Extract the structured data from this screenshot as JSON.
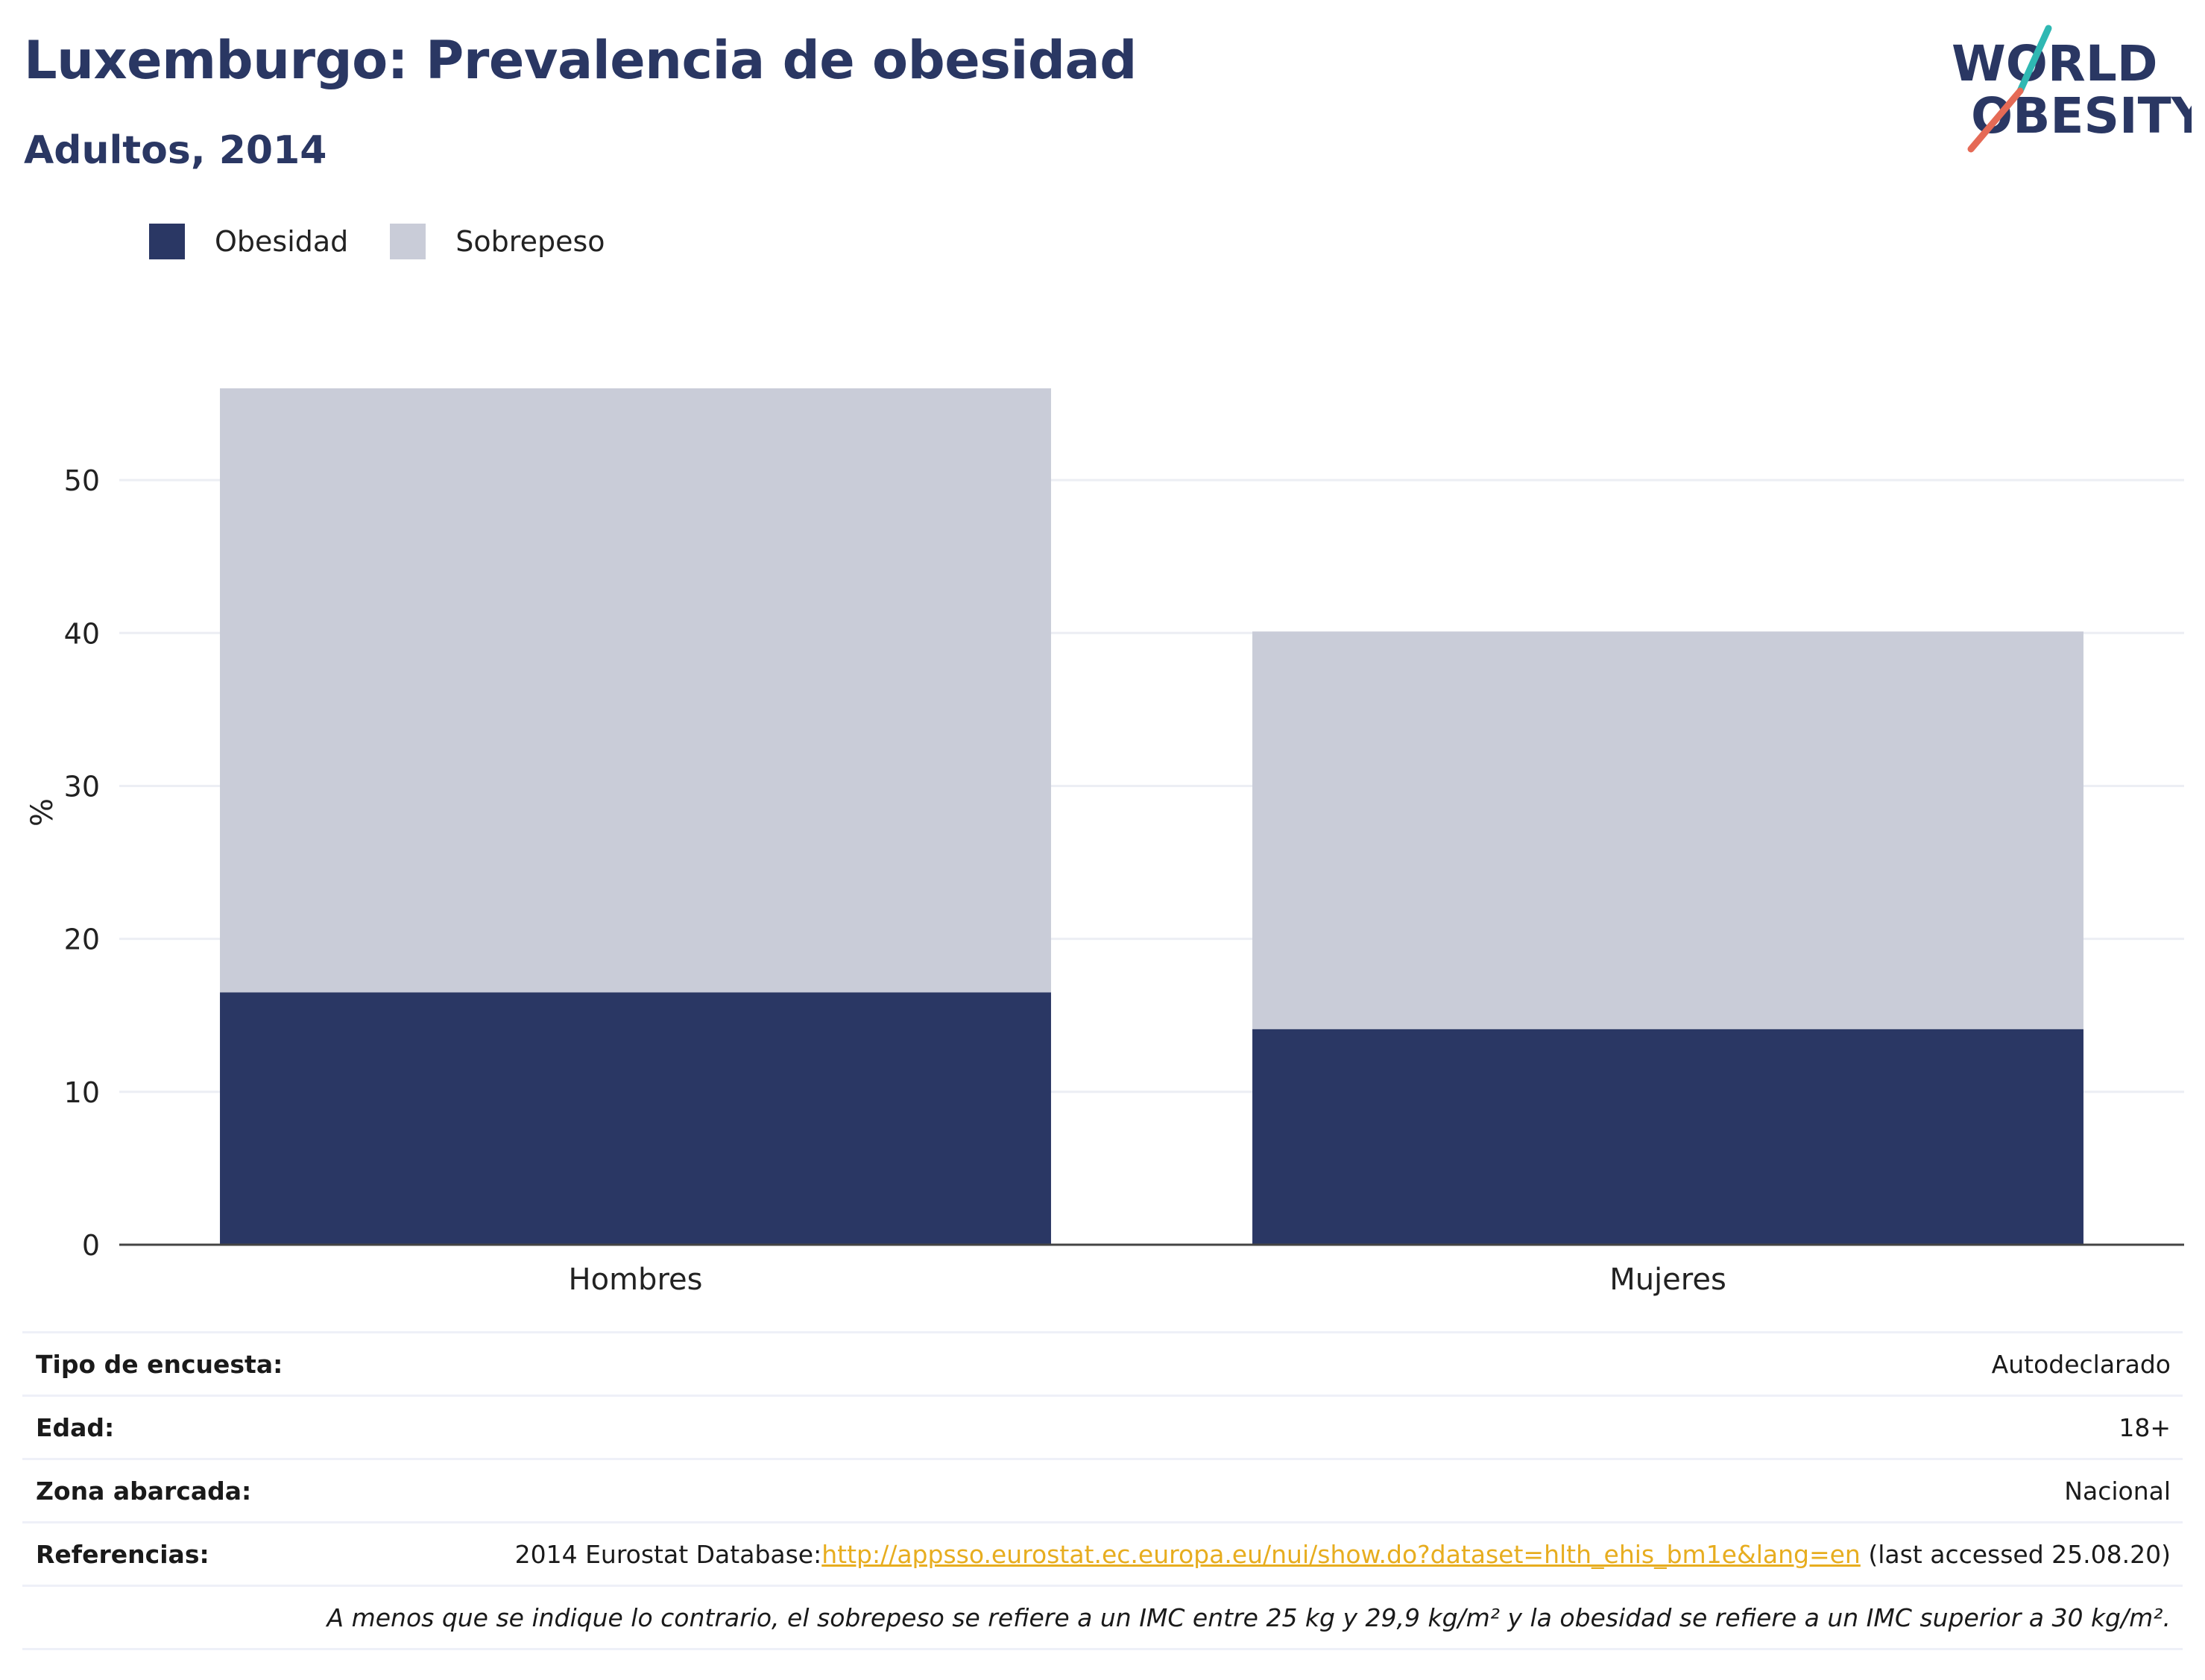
{
  "header": {
    "title": "Luxemburgo: Prevalencia de obesidad",
    "subtitle": "Adultos, 2014",
    "logo_line1": "WORLD",
    "logo_line2": "OBESITY"
  },
  "legend": {
    "items": [
      {
        "label": "Obesidad",
        "color": "#2a3764"
      },
      {
        "label": "Sobrepeso",
        "color": "#c9ccd8"
      }
    ]
  },
  "chart_data": {
    "type": "bar",
    "stacked": true,
    "categories": [
      "Hombres",
      "Mujeres"
    ],
    "series": [
      {
        "name": "Obesidad",
        "values": [
          16.5,
          14.1
        ],
        "color": "#2a3764"
      },
      {
        "name": "Sobrepeso",
        "values": [
          39.5,
          26.0
        ],
        "color": "#c9ccd8"
      }
    ],
    "title": "Luxemburgo: Prevalencia de obesidad",
    "subtitle": "Adultos, 2014",
    "xlabel": "",
    "ylabel": "%",
    "ylim": [
      0,
      58
    ],
    "yticks": [
      0,
      10,
      20,
      30,
      40,
      50
    ],
    "grid": true,
    "legend_position": "top-left"
  },
  "info": {
    "survey_type_label": "Tipo de encuesta:",
    "survey_type_value": "Autodeclarado",
    "age_label": "Edad:",
    "age_value": "18+",
    "area_label": "Zona abarcada:",
    "area_value": "Nacional",
    "references_label": "Referencias:",
    "references_prefix": "2014 Eurostat Database:",
    "references_link": "http://appsso.eurostat.ec.europa.eu/nui/show.do?dataset=hlth_ehis_bm1e&lang=en",
    "references_suffix": " (last accessed 25.08.20)",
    "note": "A menos que se indique lo contrario, el sobrepeso se refiere a un IMC entre 25 kg y 29,9 kg/m² y la obesidad se refiere a un IMC superior a 30 kg/m²."
  }
}
